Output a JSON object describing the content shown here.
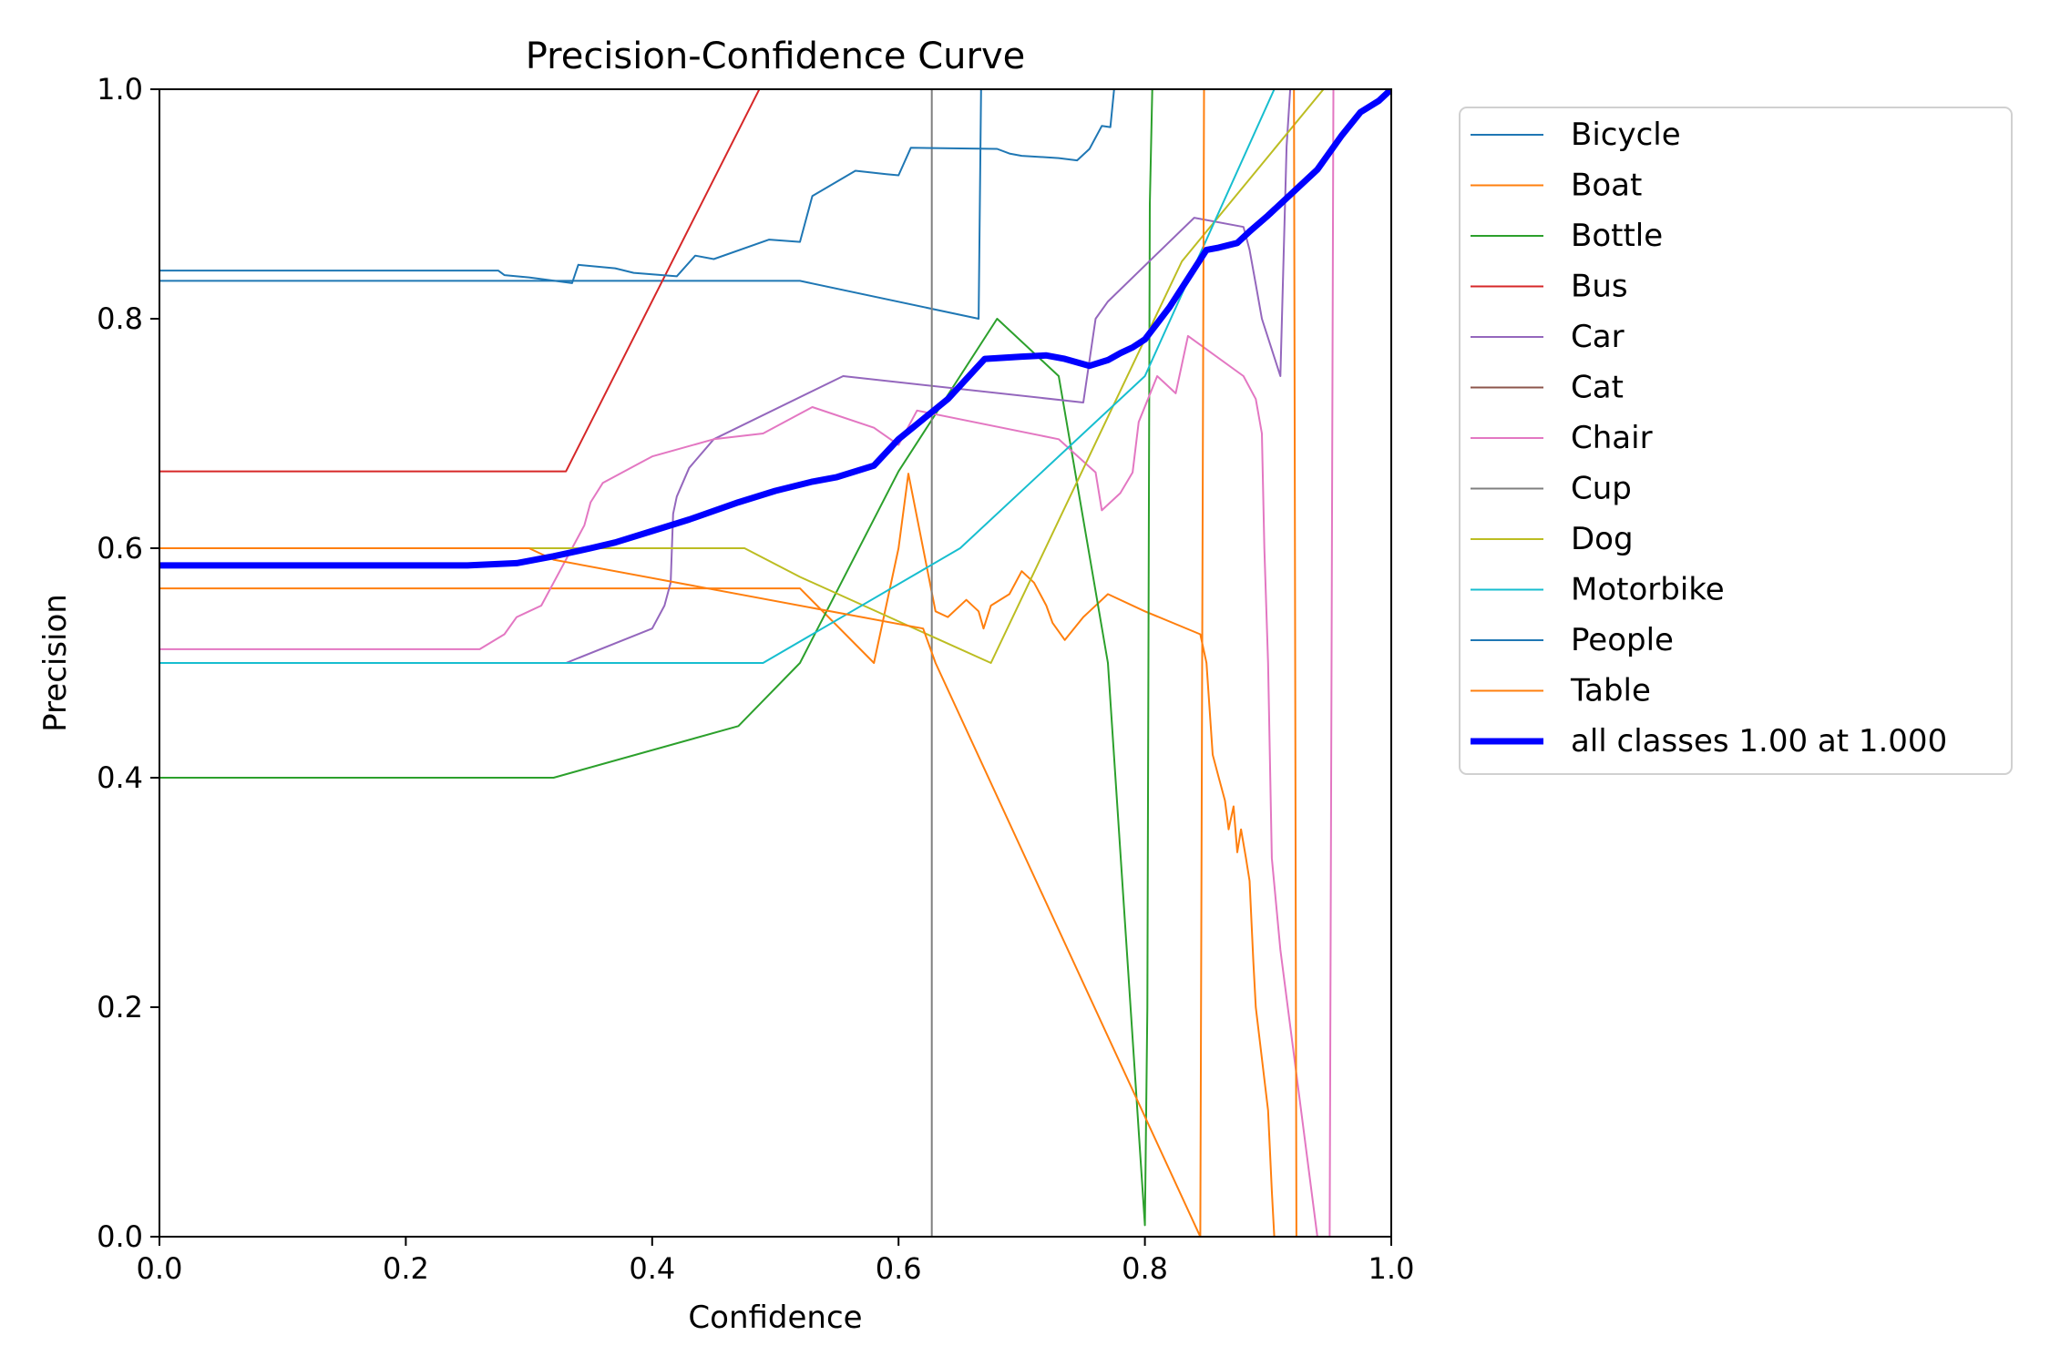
{
  "chart_data": {
    "type": "line",
    "title": "Precision-Confidence Curve",
    "xlabel": "Confidence",
    "ylabel": "Precision",
    "xlim": [
      0,
      1
    ],
    "ylim": [
      0,
      1
    ],
    "xticks": [
      "0.0",
      "0.2",
      "0.4",
      "0.6",
      "0.8",
      "1.0"
    ],
    "yticks": [
      "0.0",
      "0.2",
      "0.4",
      "0.6",
      "0.8",
      "1.0"
    ],
    "grid": false,
    "legend_position": "outside-right-top",
    "series": [
      {
        "name": "Bicycle",
        "color": "#1f77b4",
        "width": 2,
        "x": [
          0,
          0.52,
          0.665,
          0.667,
          0.9
        ],
        "y": [
          0.833,
          0.833,
          0.8,
          1.0,
          1.0
        ]
      },
      {
        "name": "Boat",
        "color": "#ff7f0e",
        "width": 2,
        "x": [
          0,
          0.52,
          0.58,
          0.6,
          0.608,
          0.63,
          0.64,
          0.655,
          0.665,
          0.669,
          0.675,
          0.69,
          0.7,
          0.71,
          0.72,
          0.725,
          0.735,
          0.75,
          0.755,
          0.77,
          0.8,
          0.845,
          0.85,
          0.855,
          0.86,
          0.865,
          0.868,
          0.872,
          0.875,
          0.878,
          0.882,
          0.885,
          0.888,
          0.89,
          0.9,
          0.903,
          0.905
        ],
        "y": [
          0.565,
          0.565,
          0.5,
          0.6,
          0.665,
          0.545,
          0.54,
          0.555,
          0.545,
          0.53,
          0.55,
          0.56,
          0.58,
          0.57,
          0.55,
          0.535,
          0.52,
          0.54,
          0.545,
          0.56,
          0.545,
          0.525,
          0.5,
          0.42,
          0.4,
          0.38,
          0.355,
          0.375,
          0.335,
          0.355,
          0.33,
          0.31,
          0.24,
          0.2,
          0.11,
          0.04,
          0.0
        ]
      },
      {
        "name": "Bottle",
        "color": "#2ca02c",
        "width": 2,
        "x": [
          0,
          0.32,
          0.47,
          0.52,
          0.6,
          0.68,
          0.73,
          0.77,
          0.8,
          0.802,
          0.804,
          0.806
        ],
        "y": [
          0.4,
          0.4,
          0.445,
          0.5,
          0.667,
          0.8,
          0.75,
          0.5,
          0.01,
          0.2,
          0.9,
          1.0
        ]
      },
      {
        "name": "Bus",
        "color": "#d62728",
        "width": 2,
        "x": [
          0,
          0.33,
          0.487,
          0.6
        ],
        "y": [
          0.667,
          0.667,
          1.0,
          1.0
        ]
      },
      {
        "name": "Car",
        "color": "#9467bd",
        "width": 2,
        "x": [
          0,
          0.33,
          0.4,
          0.41,
          0.415,
          0.417,
          0.42,
          0.43,
          0.45,
          0.555,
          0.75,
          0.76,
          0.77,
          0.84,
          0.88,
          0.885,
          0.89,
          0.895,
          0.91,
          0.915,
          0.918,
          0.92
        ],
        "y": [
          0.5,
          0.5,
          0.53,
          0.55,
          0.57,
          0.63,
          0.645,
          0.67,
          0.695,
          0.75,
          0.727,
          0.8,
          0.815,
          0.888,
          0.88,
          0.86,
          0.83,
          0.8,
          0.75,
          0.95,
          1.0,
          1.0
        ]
      },
      {
        "name": "Cat",
        "color": "#8c564b",
        "width": 2,
        "x": [],
        "y": []
      },
      {
        "name": "Chair",
        "color": "#e377c2",
        "width": 2,
        "x": [
          0,
          0.26,
          0.28,
          0.29,
          0.3,
          0.31,
          0.32,
          0.335,
          0.345,
          0.35,
          0.36,
          0.4,
          0.45,
          0.49,
          0.53,
          0.58,
          0.6,
          0.615,
          0.73,
          0.76,
          0.765,
          0.78,
          0.79,
          0.795,
          0.81,
          0.825,
          0.835,
          0.88,
          0.89,
          0.895,
          0.897,
          0.9,
          0.903,
          0.91,
          0.94,
          0.95,
          0.953
        ],
        "y": [
          0.512,
          0.512,
          0.525,
          0.54,
          0.545,
          0.55,
          0.57,
          0.6,
          0.62,
          0.64,
          0.657,
          0.68,
          0.695,
          0.7,
          0.723,
          0.705,
          0.69,
          0.72,
          0.695,
          0.666,
          0.633,
          0.648,
          0.666,
          0.71,
          0.75,
          0.735,
          0.785,
          0.75,
          0.73,
          0.7,
          0.6,
          0.5,
          0.33,
          0.25,
          0.0,
          0.0,
          1.0
        ]
      },
      {
        "name": "Cup",
        "color": "#7f7f7f",
        "width": 2,
        "x": [
          0.627,
          0.627
        ],
        "y": [
          0.0,
          1.0
        ]
      },
      {
        "name": "Dog",
        "color": "#bcbd22",
        "width": 2,
        "x": [
          0,
          0.475,
          0.52,
          0.675,
          0.83,
          0.945,
          1.0
        ],
        "y": [
          0.6,
          0.6,
          0.575,
          0.5,
          0.85,
          1.0,
          1.0
        ]
      },
      {
        "name": "Motorbike",
        "color": "#17becf",
        "width": 2,
        "x": [
          0,
          0.49,
          0.65,
          0.8,
          0.905,
          0.95
        ],
        "y": [
          0.5,
          0.5,
          0.6,
          0.75,
          1.0,
          1.0
        ]
      },
      {
        "name": "People",
        "color": "#1f77b4",
        "width": 2,
        "x": [
          0,
          0.275,
          0.28,
          0.3,
          0.335,
          0.34,
          0.37,
          0.385,
          0.42,
          0.435,
          0.45,
          0.495,
          0.52,
          0.53,
          0.565,
          0.59,
          0.6,
          0.61,
          0.68,
          0.69,
          0.7,
          0.73,
          0.745,
          0.755,
          0.765,
          0.772,
          0.775
        ],
        "y": [
          0.842,
          0.842,
          0.838,
          0.836,
          0.831,
          0.847,
          0.844,
          0.84,
          0.837,
          0.855,
          0.852,
          0.869,
          0.867,
          0.907,
          0.929,
          0.926,
          0.925,
          0.949,
          0.948,
          0.944,
          0.942,
          0.94,
          0.938,
          0.948,
          0.968,
          0.967,
          1.0
        ]
      },
      {
        "name": "Table",
        "color": "#ff7f0e",
        "width": 2,
        "x": [
          0,
          0.3,
          0.32,
          0.62,
          0.63,
          0.845,
          0.848,
          0.921,
          0.923,
          0.93
        ],
        "y": [
          0.6,
          0.6,
          0.59,
          0.53,
          0.5,
          0.0,
          1.0,
          1.0,
          0.0,
          0.0
        ]
      },
      {
        "name": "all classes 1.00 at 1.000",
        "color": "#0000ff",
        "width": 7,
        "x": [
          0,
          0.25,
          0.29,
          0.32,
          0.35,
          0.37,
          0.4,
          0.43,
          0.47,
          0.5,
          0.53,
          0.55,
          0.58,
          0.6,
          0.64,
          0.67,
          0.7,
          0.72,
          0.735,
          0.755,
          0.77,
          0.78,
          0.79,
          0.8,
          0.82,
          0.835,
          0.85,
          0.86,
          0.875,
          0.885,
          0.9,
          0.92,
          0.94,
          0.96,
          0.975,
          0.99,
          1.0
        ],
        "y": [
          0.585,
          0.585,
          0.587,
          0.593,
          0.6,
          0.605,
          0.615,
          0.625,
          0.64,
          0.65,
          0.658,
          0.662,
          0.672,
          0.695,
          0.73,
          0.765,
          0.767,
          0.768,
          0.765,
          0.759,
          0.764,
          0.77,
          0.775,
          0.782,
          0.81,
          0.835,
          0.86,
          0.862,
          0.866,
          0.876,
          0.89,
          0.91,
          0.93,
          0.96,
          0.98,
          0.99,
          1.0
        ]
      }
    ]
  }
}
